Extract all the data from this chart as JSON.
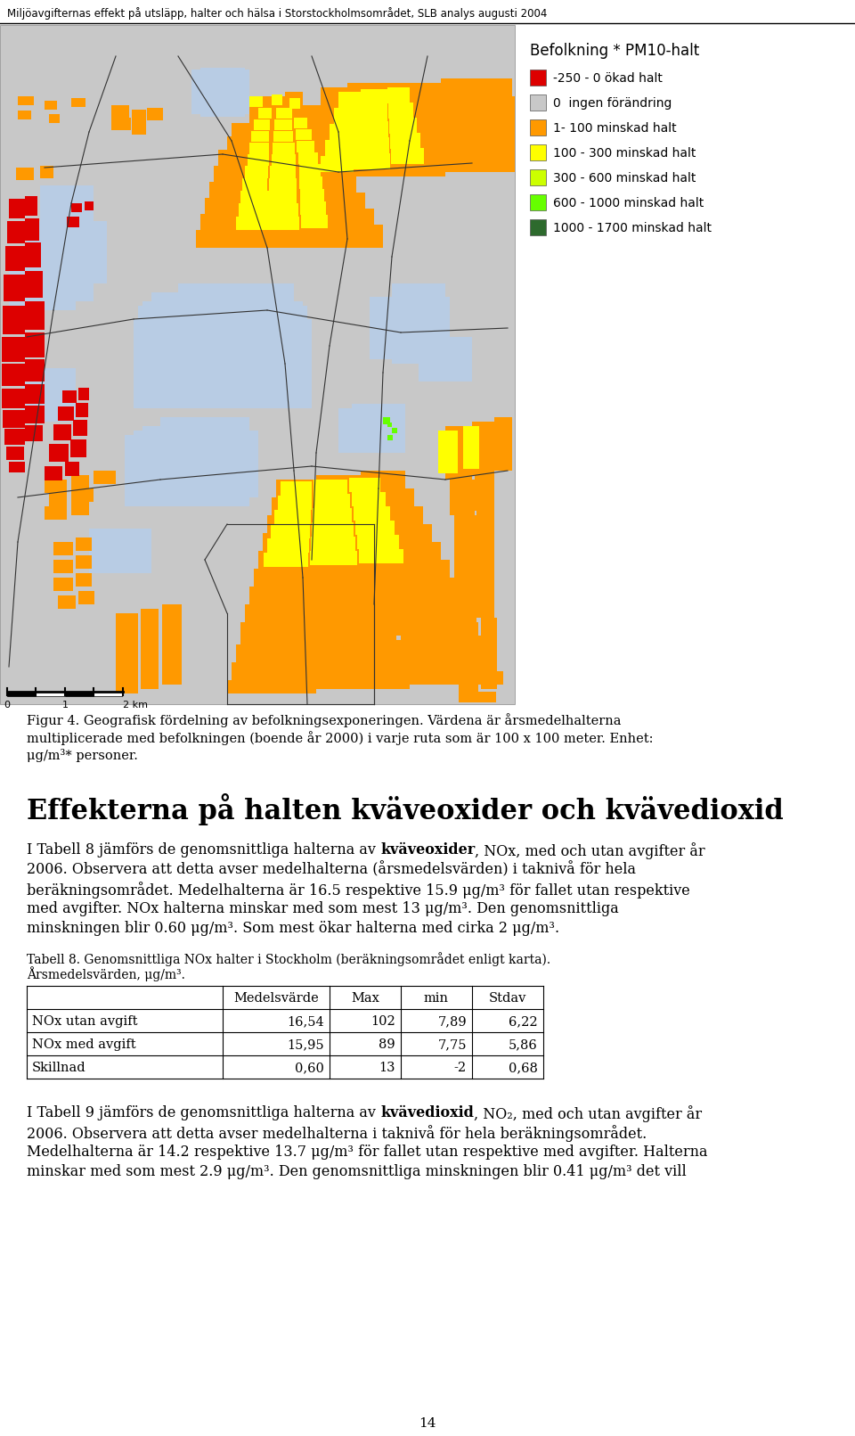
{
  "header_text": "Miljöavgifternas effekt på utsläpp, halter och hälsa i Storstockholmsområdet, SLB analys augusti 2004",
  "legend_title": "Befolkning * PM10-halt",
  "legend_labels": [
    "-250 - 0 ökad halt",
    "0  ingen förändring",
    "1- 100 minskad halt",
    "100 - 300 minskad halt",
    "300 - 600 minskad halt",
    "600 - 1000 minskad halt",
    "1000 - 1700 minskad halt"
  ],
  "legend_colors": [
    "#dd0000",
    "#c8c8c8",
    "#ff9900",
    "#ffff00",
    "#ccff00",
    "#66ff00",
    "#2d6a2d"
  ],
  "fig4_caption_lines": [
    "Figur 4. Geografisk fördelning av befolkningsexponeringen. Värdena är årsmedelhalterna",
    "multiplicerade med befolkningen (boende år 2000) i varje ruta som är 100 x 100 meter. Enhet:",
    "μg/m³* personer."
  ],
  "section_heading": "Effekterna på halten kväveoxider och kvävedioxid",
  "body1_lines": [
    [
      "I Tabell 8 jämförs de genomsnittliga halterna av ",
      "kväveoxider",
      ", NOx, med och utan avgifter år"
    ],
    [
      "2006. Observera att detta avser medelhalterna (årsmedelsvärden) i taknivå för hela"
    ],
    [
      "beräkningsområdet. Medelhalterna är 16.5 respektive 15.9 μg/m³ för fallet utan respektive"
    ],
    [
      "med avgifter. NOx halterna minskar med som mest 13 μg/m³. Den genomsnittliga"
    ],
    [
      "minskningen blir 0.60 μg/m³. Som mest ökar halterna med cirka 2 μg/m³."
    ]
  ],
  "table_caption_lines": [
    "Tabell 8. Genomsnittliga NOx halter i Stockholm (beräkningsområdet enligt karta).",
    "Årsmedelsvärden, μg/m³."
  ],
  "table_headers": [
    "",
    "Medelsvärde",
    "Max",
    "min",
    "Stdav"
  ],
  "table_rows": [
    [
      "NOx utan avgift",
      "16,54",
      "102",
      "7,89",
      "6,22"
    ],
    [
      "NOx med avgift",
      "15,95",
      "89",
      "7,75",
      "5,86"
    ],
    [
      "Skillnad",
      "0,60",
      "13",
      "-2",
      "0,68"
    ]
  ],
  "body2_lines": [
    [
      "I Tabell 9 jämförs de genomsnittliga halterna av ",
      "kvävedioxid",
      ", NO₂, med och utan avgifter år"
    ],
    [
      "2006. Observera att detta avser medelhalterna i taknivå för hela beräkningsområdet."
    ],
    [
      "Medelhalterna är 14.2 respektive 13.7 μg/m³ för fallet utan respektive med avgifter. Halterna"
    ],
    [
      "minskar med som mest 2.9 μg/m³. Den genomsnittliga minskningen blir 0.41 μg/m³ det vill"
    ]
  ],
  "page_number": "14",
  "map_bg": "#c8c8c8",
  "water_color": "#b8cce4",
  "orange_color": "#ff9900",
  "yellow_color": "#ffff00",
  "red_color": "#dd0000",
  "limegreen_color": "#66ff00",
  "darkgreen_color": "#2d6a2d"
}
